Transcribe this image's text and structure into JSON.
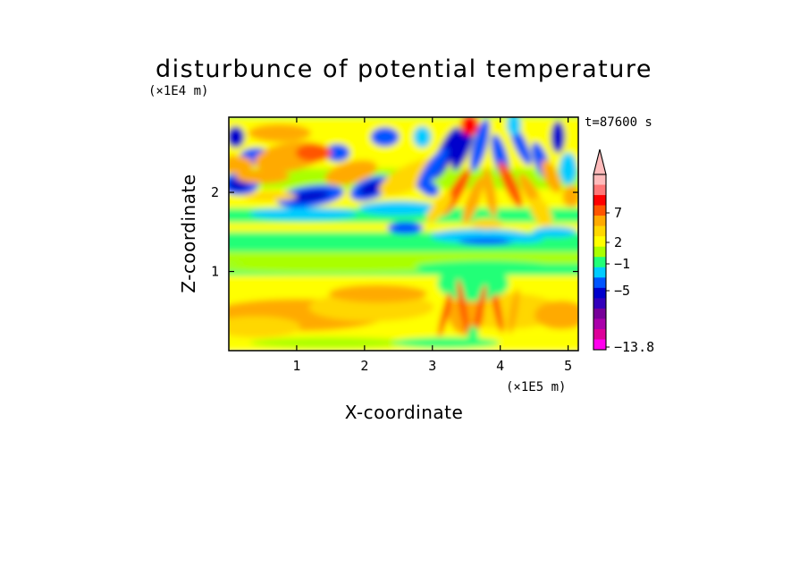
{
  "chart_data": {
    "type": "heatmap",
    "title": "disturbunce of potential temperature",
    "xlabel": "X-coordinate",
    "ylabel": "Z-coordinate",
    "x_unit": "(×1E5 m)",
    "y_unit": "(×1E4 m)",
    "time_label": "t=87600 s",
    "xlim": [
      0,
      5.15
    ],
    "ylim": [
      0,
      2.95
    ],
    "x_ticks": [
      "1",
      "2",
      "3",
      "4",
      "5"
    ],
    "x_tick_values": [
      1,
      2,
      3,
      4,
      5
    ],
    "y_ticks": [
      "1",
      "2"
    ],
    "y_tick_values": [
      1,
      2
    ],
    "colorbar": {
      "labels": [
        "7",
        "2",
        "−1",
        "−5",
        "−13.8"
      ],
      "label_levels": [
        7,
        2,
        -1,
        -5,
        -13.8
      ],
      "extend": "max",
      "colors": [
        "#ff00ee",
        "#dd0099",
        "#aa00aa",
        "#770099",
        "#3300bb",
        "#0000cc",
        "#0055ff",
        "#00ccff",
        "#22ff77",
        "#aaff00",
        "#ffff00",
        "#ffd700",
        "#ffaa00",
        "#ff5500",
        "#ff0000",
        "#ff7777",
        "#ffbbbb"
      ]
    }
  }
}
